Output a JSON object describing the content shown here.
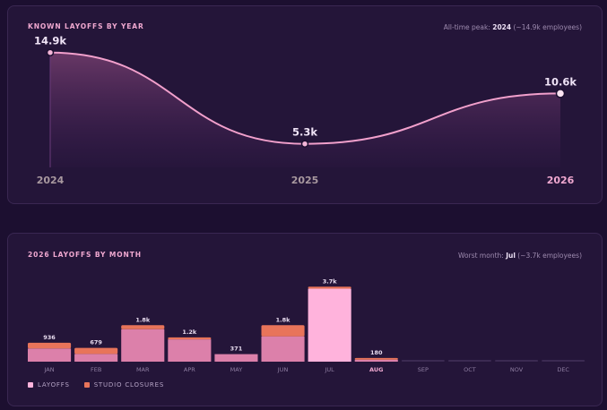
{
  "colors": {
    "background": "#1c0f30",
    "panel": "#241539",
    "accent_pink": "#f0a8d0",
    "line": "#f2a0cc",
    "layoffs_bar": "#dc80aa",
    "layoffs_bar_highlight": "#ffb3dc",
    "studio_closures_bar": "#e8745a"
  },
  "yearly": {
    "title": "KNOWN LAYOFFS BY YEAR",
    "note_prefix": "All-time peak: ",
    "note_value": "2024",
    "note_suffix": " (~14.9k employees)"
  },
  "monthly": {
    "title": "2026 LAYOFFS BY MONTH",
    "note_prefix": "Worst month: ",
    "note_value": "Jul",
    "note_suffix": " (~3.7k employees)"
  },
  "legend": {
    "layoffs": "LAYOFFS",
    "studio_closures": "STUDIO CLOSURES"
  },
  "chart_data": [
    {
      "type": "area",
      "title": "KNOWN LAYOFFS BY YEAR",
      "categories": [
        "2024",
        "2025",
        "2026"
      ],
      "values": [
        14900,
        5300,
        10600
      ],
      "labels": [
        "14.9k",
        "5.3k",
        "10.6k"
      ],
      "highlighted_category": "2026",
      "ylim": [
        0,
        16000
      ],
      "grid": false
    },
    {
      "type": "bar",
      "stacked": true,
      "title": "2026 LAYOFFS BY MONTH",
      "categories": [
        "JAN",
        "FEB",
        "MAR",
        "APR",
        "MAY",
        "JUN",
        "JUL",
        "AUG",
        "SEP",
        "OCT",
        "NOV",
        "DEC"
      ],
      "highlighted_category": "AUG",
      "highlighted_bar": "JUL",
      "totals": [
        936,
        679,
        1800,
        1200,
        371,
        1800,
        3700,
        180,
        null,
        null,
        null,
        null
      ],
      "total_labels": [
        "936",
        "679",
        "1.8k",
        "1.2k",
        "371",
        "1.8k",
        "3.7k",
        "180",
        "",
        "",
        "",
        ""
      ],
      "series": [
        {
          "name": "LAYOFFS",
          "values": [
            650,
            380,
            1600,
            1100,
            371,
            1250,
            3600,
            100,
            0,
            0,
            0,
            0
          ]
        },
        {
          "name": "STUDIO CLOSURES",
          "values": [
            286,
            299,
            200,
            100,
            0,
            550,
            100,
            80,
            0,
            0,
            0,
            0
          ]
        }
      ],
      "ylim": [
        0,
        3800
      ],
      "legend_position": "bottom-left",
      "grid": false
    }
  ]
}
